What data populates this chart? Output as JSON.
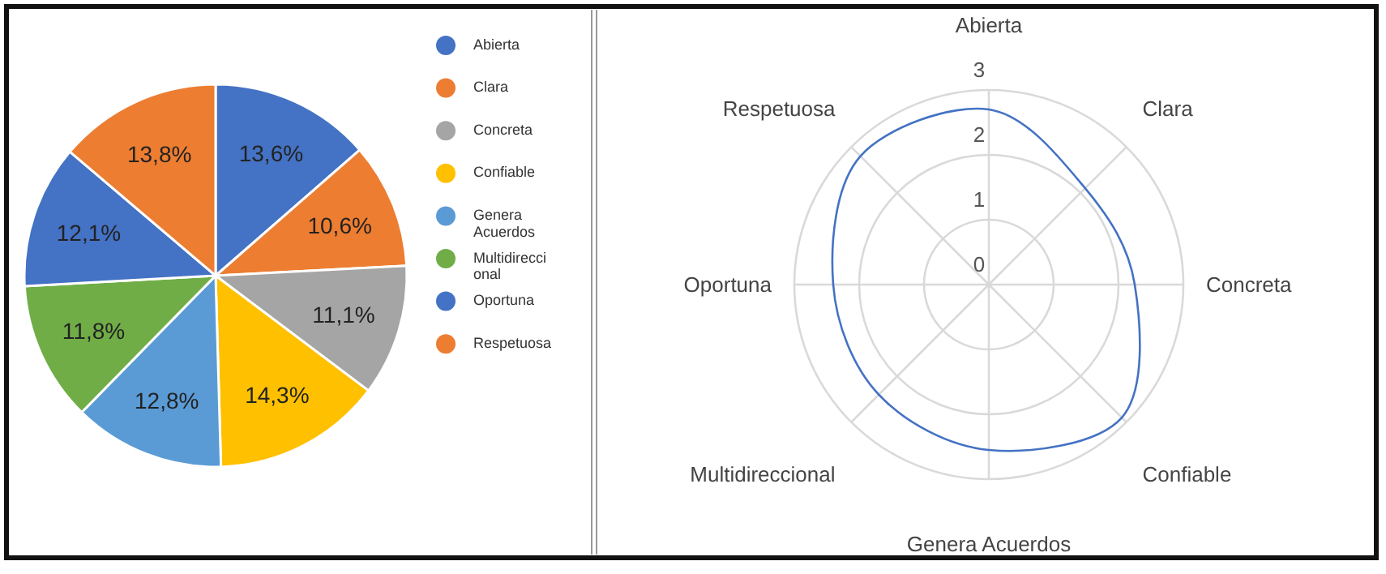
{
  "chart_data": [
    {
      "type": "pie",
      "categories": [
        "Abierta",
        "Clara",
        "Concreta",
        "Confiable",
        "Genera Acuerdos",
        "Multidireccional",
        "Oportuna",
        "Respetuosa"
      ],
      "values": [
        13.6,
        10.6,
        11.1,
        14.3,
        12.8,
        11.8,
        12.1,
        13.8
      ],
      "colors": [
        "#4472c4",
        "#ed7d31",
        "#a5a5a5",
        "#ffc000",
        "#5b9bd5",
        "#70ad47",
        "#4472c4",
        "#ed7d31"
      ],
      "value_labels": [
        "13,6%",
        "10,6%",
        "11,1%",
        "14,3%",
        "12,8%",
        "11,8%",
        "12,1%",
        "13,8%"
      ],
      "legend": "right"
    },
    {
      "type": "radar",
      "categories": [
        "Abierta",
        "Clara",
        "Concreta",
        "Confiable",
        "Genera Acuerdos",
        "Multidireccional",
        "Oportuna",
        "Respetuosa"
      ],
      "series": [
        {
          "color": "#4472c4",
          "values": [
            2.7,
            2.1,
            2.25,
            2.9,
            2.55,
            2.4,
            2.4,
            2.8
          ]
        }
      ],
      "ylim": [
        0,
        3
      ],
      "yticks": [
        0,
        1,
        2,
        3
      ],
      "grid": true
    }
  ]
}
